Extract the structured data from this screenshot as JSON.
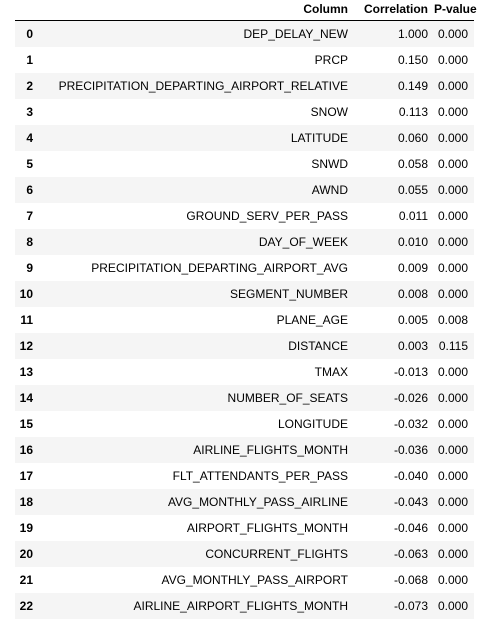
{
  "table": {
    "headers": [
      "",
      "Column",
      "Correlation",
      "P-value"
    ],
    "rows": [
      {
        "index": "0",
        "column": "DEP_DELAY_NEW",
        "correlation": "1.000",
        "pvalue": "0.000"
      },
      {
        "index": "1",
        "column": "PRCP",
        "correlation": "0.150",
        "pvalue": "0.000"
      },
      {
        "index": "2",
        "column": "PRECIPITATION_DEPARTING_AIRPORT_RELATIVE",
        "correlation": "0.149",
        "pvalue": "0.000"
      },
      {
        "index": "3",
        "column": "SNOW",
        "correlation": "0.113",
        "pvalue": "0.000"
      },
      {
        "index": "4",
        "column": "LATITUDE",
        "correlation": "0.060",
        "pvalue": "0.000"
      },
      {
        "index": "5",
        "column": "SNWD",
        "correlation": "0.058",
        "pvalue": "0.000"
      },
      {
        "index": "6",
        "column": "AWND",
        "correlation": "0.055",
        "pvalue": "0.000"
      },
      {
        "index": "7",
        "column": "GROUND_SERV_PER_PASS",
        "correlation": "0.011",
        "pvalue": "0.000"
      },
      {
        "index": "8",
        "column": "DAY_OF_WEEK",
        "correlation": "0.010",
        "pvalue": "0.000"
      },
      {
        "index": "9",
        "column": "PRECIPITATION_DEPARTING_AIRPORT_AVG",
        "correlation": "0.009",
        "pvalue": "0.000"
      },
      {
        "index": "10",
        "column": "SEGMENT_NUMBER",
        "correlation": "0.008",
        "pvalue": "0.000"
      },
      {
        "index": "11",
        "column": "PLANE_AGE",
        "correlation": "0.005",
        "pvalue": "0.008"
      },
      {
        "index": "12",
        "column": "DISTANCE",
        "correlation": "0.003",
        "pvalue": "0.115"
      },
      {
        "index": "13",
        "column": "TMAX",
        "correlation": "-0.013",
        "pvalue": "0.000"
      },
      {
        "index": "14",
        "column": "NUMBER_OF_SEATS",
        "correlation": "-0.026",
        "pvalue": "0.000"
      },
      {
        "index": "15",
        "column": "LONGITUDE",
        "correlation": "-0.032",
        "pvalue": "0.000"
      },
      {
        "index": "16",
        "column": "AIRLINE_FLIGHTS_MONTH",
        "correlation": "-0.036",
        "pvalue": "0.000"
      },
      {
        "index": "17",
        "column": "FLT_ATTENDANTS_PER_PASS",
        "correlation": "-0.040",
        "pvalue": "0.000"
      },
      {
        "index": "18",
        "column": "AVG_MONTHLY_PASS_AIRLINE",
        "correlation": "-0.043",
        "pvalue": "0.000"
      },
      {
        "index": "19",
        "column": "AIRPORT_FLIGHTS_MONTH",
        "correlation": "-0.046",
        "pvalue": "0.000"
      },
      {
        "index": "20",
        "column": "CONCURRENT_FLIGHTS",
        "correlation": "-0.063",
        "pvalue": "0.000"
      },
      {
        "index": "21",
        "column": "AVG_MONTHLY_PASS_AIRPORT",
        "correlation": "-0.068",
        "pvalue": "0.000"
      },
      {
        "index": "22",
        "column": "AIRLINE_AIRPORT_FLIGHTS_MONTH",
        "correlation": "-0.073",
        "pvalue": "0.000"
      }
    ]
  },
  "colors": {
    "stripe": "#f5f5f5",
    "header_border": "#000000",
    "text": "#000000"
  }
}
